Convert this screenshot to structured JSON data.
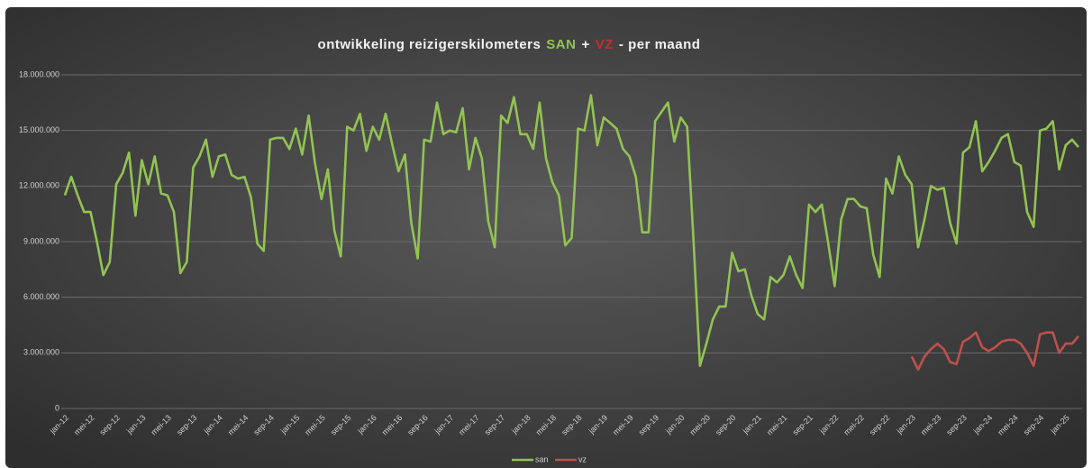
{
  "chart_data": {
    "type": "line",
    "title": [
      "ontwikkeling reizigerskilometers",
      "SAN",
      "+",
      "VZ",
      "- per maand"
    ],
    "title_colors": [
      "#f2f2f2",
      "#92c353",
      "#f2f2f2",
      "#c0302d",
      "#f2f2f2"
    ],
    "categories": [
      "jan-12",
      null,
      null,
      null,
      "mei-12",
      null,
      null,
      null,
      "sep-12",
      null,
      null,
      null,
      "jan-13",
      null,
      null,
      null,
      "mei-13",
      null,
      null,
      null,
      "sep-13",
      null,
      null,
      null,
      "jan-14",
      null,
      null,
      null,
      "mei-14",
      null,
      null,
      null,
      "sep-14",
      null,
      null,
      null,
      "jan-15",
      null,
      null,
      null,
      "mei-15",
      null,
      null,
      null,
      "sep-15",
      null,
      null,
      null,
      "jan-16",
      null,
      null,
      null,
      "mei-16",
      null,
      null,
      null,
      "sep-16",
      null,
      null,
      null,
      "jan-17",
      null,
      null,
      null,
      "mei-17",
      null,
      null,
      null,
      "sep-17",
      null,
      null,
      null,
      "jan-18",
      null,
      null,
      null,
      "mei-18",
      null,
      null,
      null,
      "sep-18",
      null,
      null,
      null,
      "jan-19",
      null,
      null,
      null,
      "mei-19",
      null,
      null,
      null,
      "sep-19",
      null,
      null,
      null,
      "jan-20",
      null,
      null,
      null,
      "mei-20",
      null,
      null,
      null,
      "sep-20",
      null,
      null,
      null,
      "jan-21",
      null,
      null,
      null,
      "mei-21",
      null,
      null,
      null,
      "sep-21",
      null,
      null,
      null,
      "jan-22",
      null,
      null,
      null,
      "mei-22",
      null,
      null,
      null,
      "sep-22",
      null,
      null,
      null,
      "jan-23",
      null,
      null,
      null,
      "mei-23",
      null,
      null,
      null,
      "sep-23",
      null,
      null,
      null,
      "jan-24",
      null,
      null,
      null,
      "mei-24",
      null,
      null,
      null,
      "sep-24",
      null,
      null,
      null,
      "jan-25",
      null,
      null
    ],
    "series": [
      {
        "name": "san",
        "color": "#92c353",
        "values": [
          11500000,
          12500000,
          11500000,
          10600000,
          10600000,
          9000000,
          7200000,
          7900000,
          12100000,
          12700000,
          13800000,
          10400000,
          13400000,
          12100000,
          13600000,
          11600000,
          11500000,
          10600000,
          7300000,
          7900000,
          13000000,
          13600000,
          14500000,
          12500000,
          13600000,
          13700000,
          12600000,
          12400000,
          12500000,
          11400000,
          8900000,
          8500000,
          14500000,
          14600000,
          14600000,
          14000000,
          15100000,
          13700000,
          15800000,
          13200000,
          11300000,
          12900000,
          9600000,
          8200000,
          15200000,
          15000000,
          15900000,
          13900000,
          15200000,
          14500000,
          15900000,
          14300000,
          12800000,
          13700000,
          10000000,
          8100000,
          14500000,
          14400000,
          16500000,
          14800000,
          15000000,
          14900000,
          16200000,
          12900000,
          14600000,
          13500000,
          10100000,
          8700000,
          15800000,
          15400000,
          16800000,
          14800000,
          14800000,
          14000000,
          16500000,
          13500000,
          12200000,
          11500000,
          8800000,
          9200000,
          15100000,
          15000000,
          16900000,
          14200000,
          15700000,
          15400000,
          15100000,
          14000000,
          13600000,
          12500000,
          9500000,
          9500000,
          15500000,
          16000000,
          16500000,
          14400000,
          15700000,
          15200000,
          9000000,
          2300000,
          3500000,
          4800000,
          5500000,
          5500000,
          8400000,
          7400000,
          7500000,
          6100000,
          5100000,
          4800000,
          7100000,
          6800000,
          7200000,
          8200000,
          7200000,
          6500000,
          11000000,
          10600000,
          11000000,
          8900000,
          6600000,
          10200000,
          11300000,
          11300000,
          10900000,
          10800000,
          8300000,
          7100000,
          12400000,
          11600000,
          13600000,
          12600000,
          12100000,
          8700000,
          10200000,
          12000000,
          11800000,
          11900000,
          10000000,
          8900000,
          13800000,
          14100000,
          15500000,
          12800000,
          13300000,
          13900000,
          14600000,
          14800000,
          13300000,
          13100000,
          10600000,
          9800000,
          15000000,
          15100000,
          15500000,
          12900000,
          14200000,
          14500000,
          14100000
        ]
      },
      {
        "name": "vz",
        "color": "#c0504d",
        "values": [
          null,
          null,
          null,
          null,
          null,
          null,
          null,
          null,
          null,
          null,
          null,
          null,
          null,
          null,
          null,
          null,
          null,
          null,
          null,
          null,
          null,
          null,
          null,
          null,
          null,
          null,
          null,
          null,
          null,
          null,
          null,
          null,
          null,
          null,
          null,
          null,
          null,
          null,
          null,
          null,
          null,
          null,
          null,
          null,
          null,
          null,
          null,
          null,
          null,
          null,
          null,
          null,
          null,
          null,
          null,
          null,
          null,
          null,
          null,
          null,
          null,
          null,
          null,
          null,
          null,
          null,
          null,
          null,
          null,
          null,
          null,
          null,
          null,
          null,
          null,
          null,
          null,
          null,
          null,
          null,
          null,
          null,
          null,
          null,
          null,
          null,
          null,
          null,
          null,
          null,
          null,
          null,
          null,
          null,
          null,
          null,
          null,
          null,
          null,
          null,
          null,
          null,
          null,
          null,
          null,
          null,
          null,
          null,
          null,
          null,
          null,
          null,
          null,
          null,
          null,
          null,
          null,
          null,
          null,
          null,
          null,
          null,
          null,
          null,
          null,
          null,
          null,
          null,
          null,
          null,
          null,
          null,
          2800000,
          2100000,
          2800000,
          3200000,
          3500000,
          3200000,
          2500000,
          2400000,
          3600000,
          3800000,
          4100000,
          3300000,
          3100000,
          3300000,
          3600000,
          3700000,
          3700000,
          3500000,
          3000000,
          2300000,
          4000000,
          4100000,
          4100000,
          3000000,
          3500000,
          3500000,
          3900000
        ]
      }
    ],
    "ylim": [
      0,
      18000000
    ],
    "yticks": [
      0,
      {
        "value": 3000000,
        "label": "3.000.000"
      },
      {
        "value": 6000000,
        "label": "6.000.000"
      },
      {
        "value": 9000000,
        "label": "9.000.000"
      },
      {
        "value": 12000000,
        "label": "12.000.000"
      },
      {
        "value": 15000000,
        "label": "15.000.000"
      },
      {
        "value": 18000000,
        "label": "18.000.000"
      }
    ],
    "grid": true,
    "legend": "bottom"
  }
}
